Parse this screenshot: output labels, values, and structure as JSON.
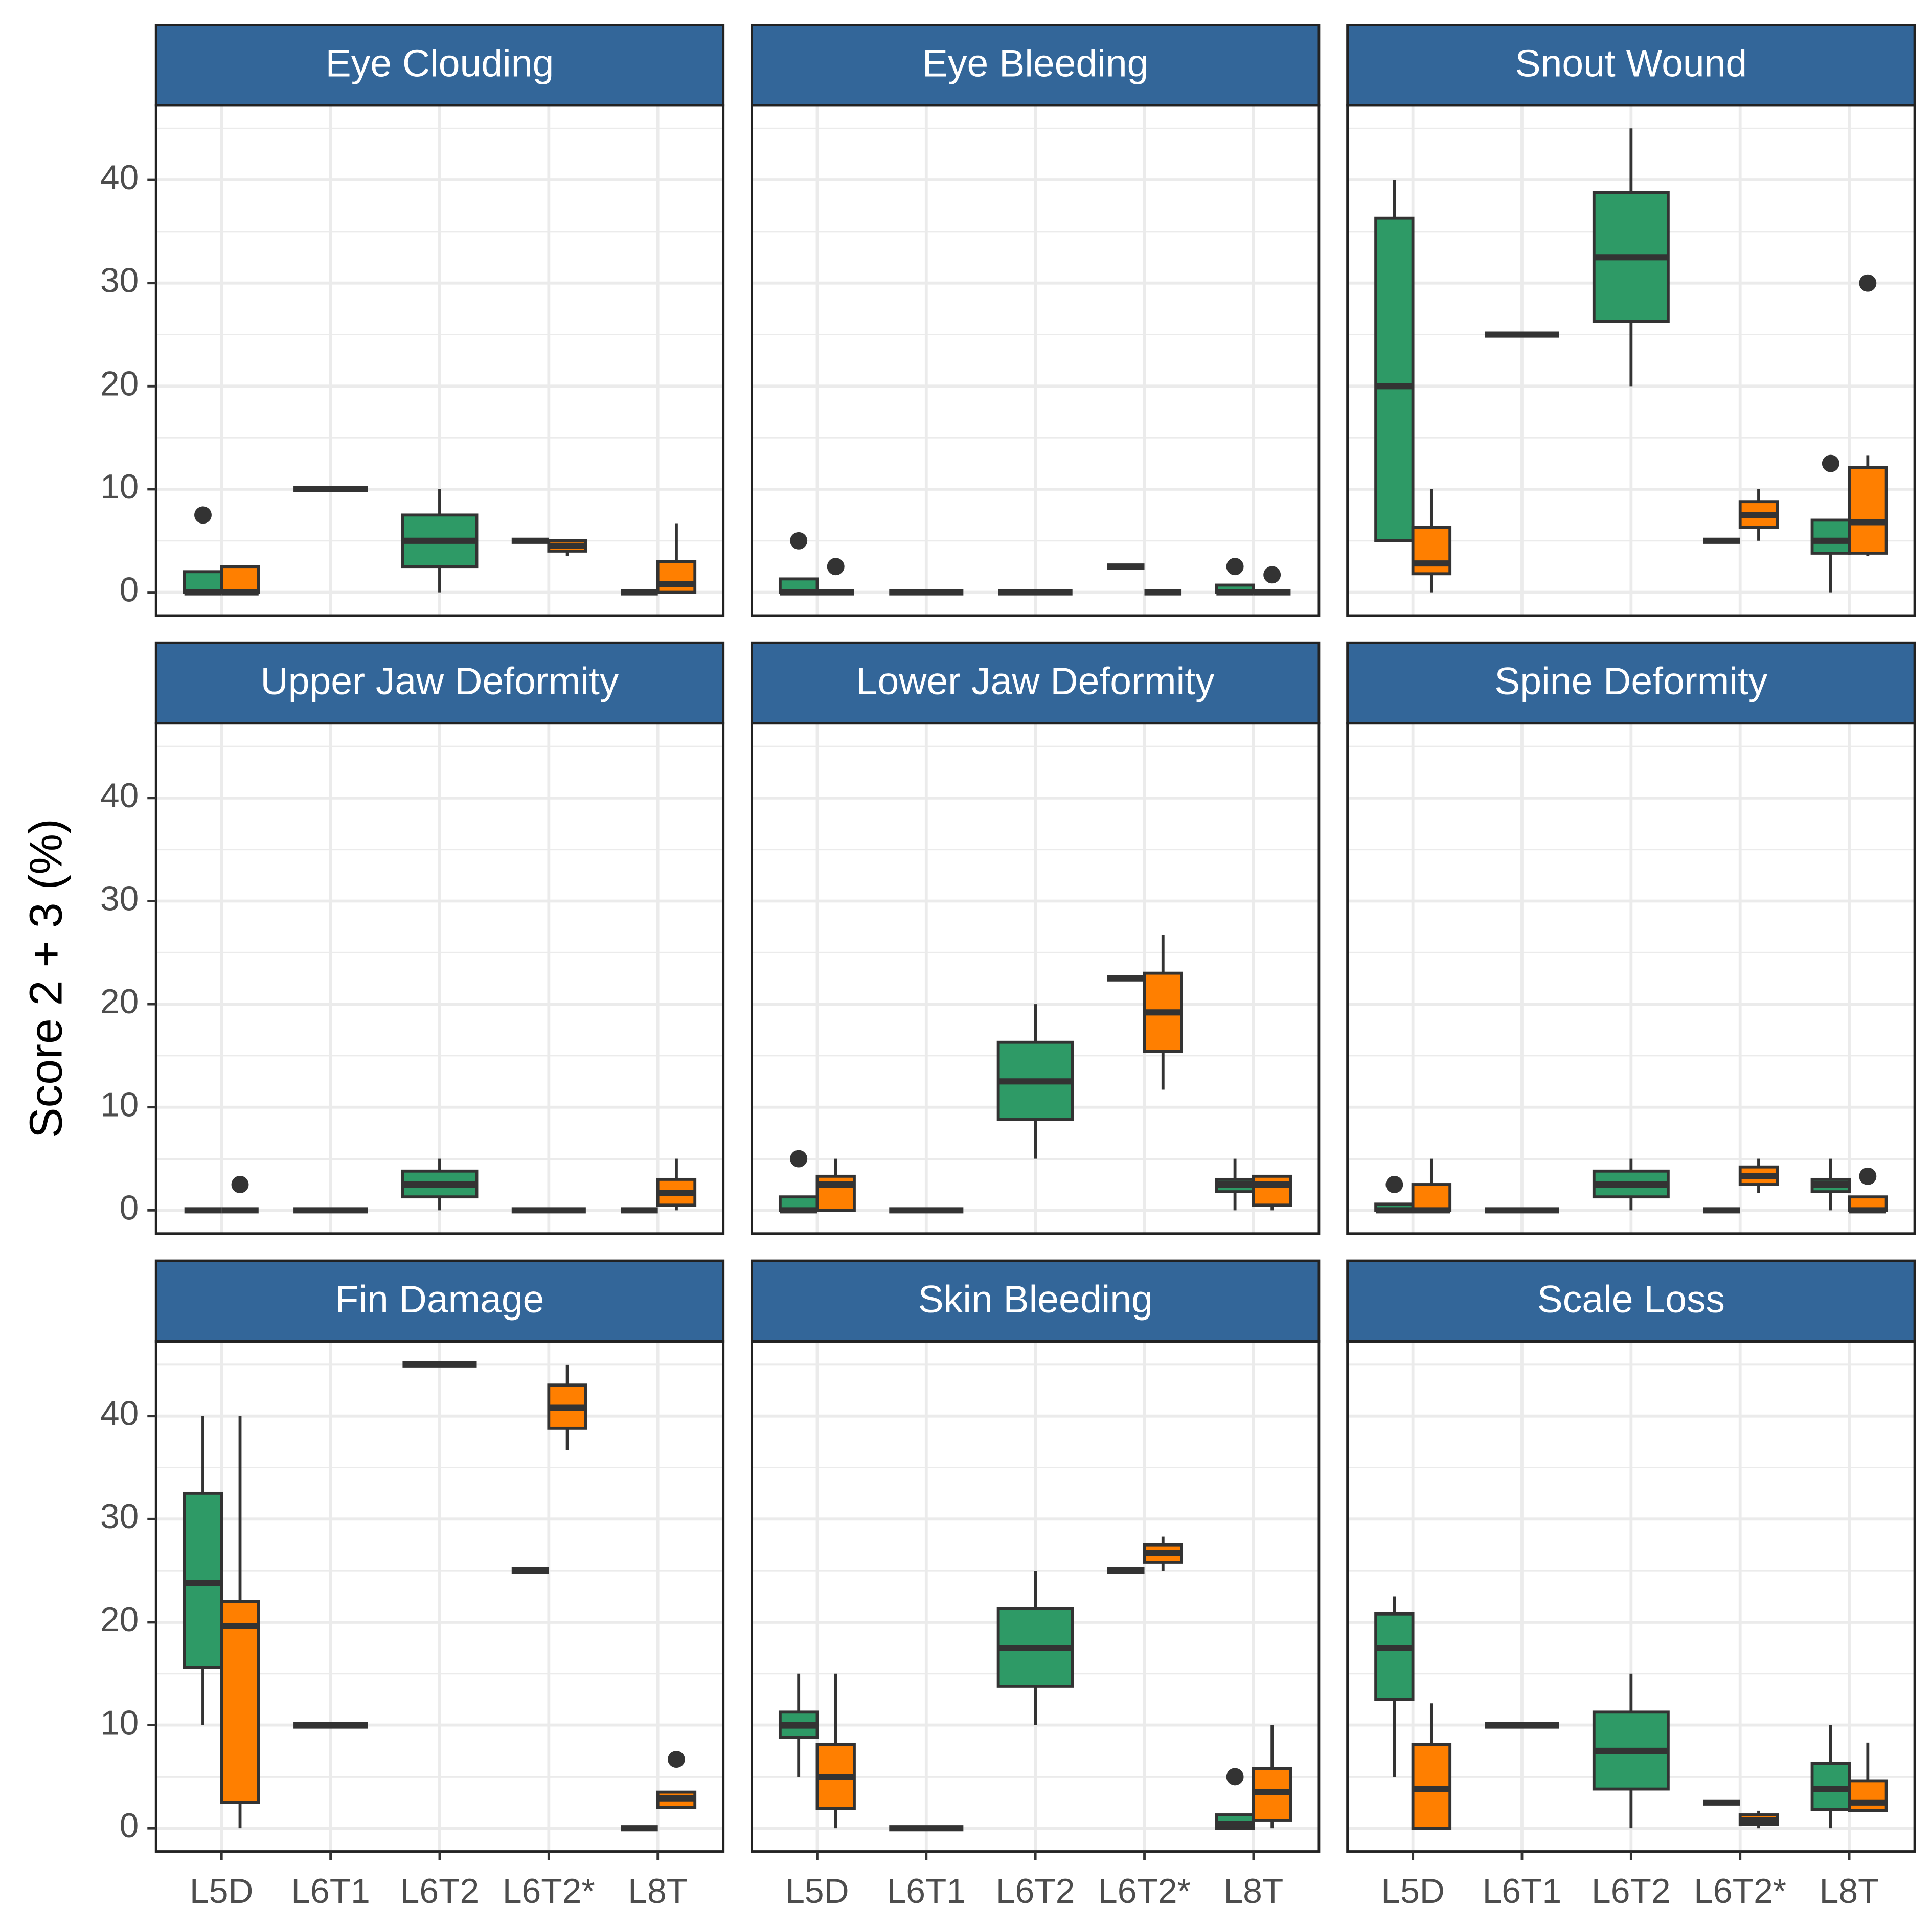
{
  "chart_data": {
    "type": "box",
    "ylabel": "Score 2 + 3 (%)",
    "categories": [
      "L5D",
      "L6T1",
      "L6T2",
      "L6T2*",
      "L8T"
    ],
    "ylim": [
      -2.25,
      47.25
    ],
    "yticks": [
      0,
      10,
      20,
      30,
      40
    ],
    "yminor": [
      5,
      15,
      25,
      35,
      45
    ],
    "grid": true,
    "panels": [
      {
        "title": "Eye Clouding",
        "series": [
          {
            "color": "#2e9a66",
            "boxes": [
              {
                "min": 0,
                "q1": 0,
                "median": 0,
                "q3": 2,
                "max": 2,
                "outliers": [
                  7.5
                ]
              },
              {
                "min": 10,
                "q1": 10,
                "median": 10,
                "q3": 10,
                "max": 10
              },
              {
                "min": 0,
                "q1": 2.5,
                "median": 5,
                "q3": 7.5,
                "max": 10
              },
              {
                "min": 5,
                "q1": 5,
                "median": 5,
                "q3": 5,
                "max": 5
              },
              {
                "min": 0,
                "q1": 0,
                "median": 0,
                "q3": 0,
                "max": 0
              }
            ]
          },
          {
            "color": "#ff7f00",
            "boxes": [
              {
                "min": 0,
                "q1": 0,
                "median": 0,
                "q3": 2.5,
                "max": 2.5
              },
              null,
              null,
              {
                "min": 3.5,
                "q1": 4,
                "median": 4.5,
                "q3": 5,
                "max": 5
              },
              {
                "min": 0,
                "q1": 0,
                "median": 0.8,
                "q3": 3,
                "max": 6.7
              }
            ]
          }
        ]
      },
      {
        "title": "Eye Bleeding",
        "series": [
          {
            "color": "#2e9a66",
            "boxes": [
              {
                "min": 0,
                "q1": 0,
                "median": 0,
                "q3": 1.3,
                "max": 1.3,
                "outliers": [
                  5
                ]
              },
              {
                "min": 0,
                "q1": 0,
                "median": 0,
                "q3": 0,
                "max": 0
              },
              {
                "min": 0,
                "q1": 0,
                "median": 0,
                "q3": 0,
                "max": 0
              },
              {
                "min": 2.5,
                "q1": 2.5,
                "median": 2.5,
                "q3": 2.5,
                "max": 2.5
              },
              {
                "min": 0,
                "q1": 0,
                "median": 0,
                "q3": 0.7,
                "max": 0.7,
                "outliers": [
                  2.5
                ]
              }
            ]
          },
          {
            "color": "#ff7f00",
            "boxes": [
              {
                "min": 0,
                "q1": 0,
                "median": 0,
                "q3": 0,
                "max": 0,
                "outliers": [
                  2.5
                ]
              },
              null,
              null,
              {
                "min": 0,
                "q1": 0,
                "median": 0,
                "q3": 0,
                "max": 0
              },
              {
                "min": 0,
                "q1": 0,
                "median": 0,
                "q3": 0,
                "max": 0,
                "outliers": [
                  1.7
                ]
              }
            ]
          }
        ]
      },
      {
        "title": "Snout Wound",
        "series": [
          {
            "color": "#2e9a66",
            "boxes": [
              {
                "min": 5,
                "q1": 5,
                "median": 20,
                "q3": 36.3,
                "max": 40
              },
              {
                "min": 25,
                "q1": 25,
                "median": 25,
                "q3": 25,
                "max": 25
              },
              {
                "min": 20,
                "q1": 26.3,
                "median": 32.5,
                "q3": 38.8,
                "max": 45
              },
              {
                "min": 5,
                "q1": 5,
                "median": 5,
                "q3": 5,
                "max": 5
              },
              {
                "min": 0,
                "q1": 3.8,
                "median": 5,
                "q3": 7,
                "max": 7,
                "outliers": [
                  12.5
                ]
              }
            ]
          },
          {
            "color": "#ff7f00",
            "boxes": [
              {
                "min": 0,
                "q1": 1.8,
                "median": 2.8,
                "q3": 6.3,
                "max": 10
              },
              null,
              null,
              {
                "min": 5,
                "q1": 6.3,
                "median": 7.5,
                "q3": 8.8,
                "max": 10
              },
              {
                "min": 3.5,
                "q1": 3.8,
                "median": 6.8,
                "q3": 12.1,
                "max": 13.3,
                "outliers": [
                  30
                ]
              }
            ]
          }
        ]
      },
      {
        "title": "Upper Jaw Deformity",
        "series": [
          {
            "color": "#2e9a66",
            "boxes": [
              {
                "min": 0,
                "q1": 0,
                "median": 0,
                "q3": 0,
                "max": 0
              },
              {
                "min": 0,
                "q1": 0,
                "median": 0,
                "q3": 0,
                "max": 0
              },
              {
                "min": 0,
                "q1": 1.3,
                "median": 2.5,
                "q3": 3.8,
                "max": 5
              },
              {
                "min": 0,
                "q1": 0,
                "median": 0,
                "q3": 0,
                "max": 0
              },
              {
                "min": 0,
                "q1": 0,
                "median": 0,
                "q3": 0,
                "max": 0
              }
            ]
          },
          {
            "color": "#ff7f00",
            "boxes": [
              {
                "min": 0,
                "q1": 0,
                "median": 0,
                "q3": 0,
                "max": 0,
                "outliers": [
                  2.5
                ]
              },
              null,
              null,
              {
                "min": 0,
                "q1": 0,
                "median": 0,
                "q3": 0,
                "max": 0
              },
              {
                "min": 0,
                "q1": 0.5,
                "median": 1.7,
                "q3": 3,
                "max": 5
              }
            ]
          }
        ]
      },
      {
        "title": "Lower Jaw Deformity",
        "series": [
          {
            "color": "#2e9a66",
            "boxes": [
              {
                "min": 0,
                "q1": 0,
                "median": 0,
                "q3": 1.3,
                "max": 1.3,
                "outliers": [
                  5
                ]
              },
              {
                "min": 0,
                "q1": 0,
                "median": 0,
                "q3": 0,
                "max": 0
              },
              {
                "min": 5,
                "q1": 8.8,
                "median": 12.5,
                "q3": 16.3,
                "max": 20
              },
              {
                "min": 22.5,
                "q1": 22.5,
                "median": 22.5,
                "q3": 22.5,
                "max": 22.5
              },
              {
                "min": 0,
                "q1": 1.8,
                "median": 2.5,
                "q3": 3,
                "max": 5
              }
            ]
          },
          {
            "color": "#ff7f00",
            "boxes": [
              {
                "min": 0,
                "q1": 0,
                "median": 2.5,
                "q3": 3.3,
                "max": 5
              },
              null,
              null,
              {
                "min": 11.7,
                "q1": 15.4,
                "median": 19.2,
                "q3": 23,
                "max": 26.7
              },
              {
                "min": 0,
                "q1": 0.5,
                "median": 2.5,
                "q3": 3.3,
                "max": 3.3
              }
            ]
          }
        ]
      },
      {
        "title": "Spine Deformity",
        "series": [
          {
            "color": "#2e9a66",
            "boxes": [
              {
                "min": 0,
                "q1": 0,
                "median": 0,
                "q3": 0.6,
                "max": 0.6,
                "outliers": [
                  2.5
                ]
              },
              {
                "min": 0,
                "q1": 0,
                "median": 0,
                "q3": 0,
                "max": 0
              },
              {
                "min": 0,
                "q1": 1.3,
                "median": 2.5,
                "q3": 3.8,
                "max": 5
              },
              {
                "min": 0,
                "q1": 0,
                "median": 0,
                "q3": 0,
                "max": 0
              },
              {
                "min": 0,
                "q1": 1.8,
                "median": 2.5,
                "q3": 3,
                "max": 5
              }
            ]
          },
          {
            "color": "#ff7f00",
            "boxes": [
              {
                "min": 0,
                "q1": 0,
                "median": 0,
                "q3": 2.5,
                "max": 5
              },
              null,
              null,
              {
                "min": 1.7,
                "q1": 2.5,
                "median": 3.3,
                "q3": 4.2,
                "max": 5
              },
              {
                "min": 0,
                "q1": 0,
                "median": 0,
                "q3": 1.3,
                "max": 1.3,
                "outliers": [
                  3.3
                ]
              }
            ]
          }
        ]
      },
      {
        "title": "Fin Damage",
        "series": [
          {
            "color": "#2e9a66",
            "boxes": [
              {
                "min": 10,
                "q1": 15.6,
                "median": 23.8,
                "q3": 32.5,
                "max": 40
              },
              {
                "min": 10,
                "q1": 10,
                "median": 10,
                "q3": 10,
                "max": 10
              },
              {
                "min": 45,
                "q1": 45,
                "median": 45,
                "q3": 45,
                "max": 45
              },
              {
                "min": 25,
                "q1": 25,
                "median": 25,
                "q3": 25,
                "max": 25
              },
              {
                "min": 0,
                "q1": 0,
                "median": 0,
                "q3": 0,
                "max": 0
              }
            ]
          },
          {
            "color": "#ff7f00",
            "boxes": [
              {
                "min": 0,
                "q1": 2.5,
                "median": 19.6,
                "q3": 22,
                "max": 40
              },
              null,
              null,
              {
                "min": 36.7,
                "q1": 38.8,
                "median": 40.8,
                "q3": 43,
                "max": 45
              },
              {
                "min": 1.9,
                "q1": 2,
                "median": 2.9,
                "q3": 3.5,
                "max": 3.5,
                "outliers": [
                  6.7
                ]
              }
            ]
          }
        ]
      },
      {
        "title": "Skin Bleeding",
        "series": [
          {
            "color": "#2e9a66",
            "boxes": [
              {
                "min": 5,
                "q1": 8.8,
                "median": 10,
                "q3": 11.3,
                "max": 15
              },
              {
                "min": 0,
                "q1": 0,
                "median": 0,
                "q3": 0,
                "max": 0
              },
              {
                "min": 10,
                "q1": 13.8,
                "median": 17.5,
                "q3": 21.3,
                "max": 25
              },
              {
                "min": 25,
                "q1": 25,
                "median": 25,
                "q3": 25,
                "max": 25
              },
              {
                "min": 0,
                "q1": 0,
                "median": 0.4,
                "q3": 1.3,
                "max": 1.3,
                "outliers": [
                  5
                ]
              }
            ]
          },
          {
            "color": "#ff7f00",
            "boxes": [
              {
                "min": 0,
                "q1": 1.9,
                "median": 5,
                "q3": 8.1,
                "max": 15
              },
              null,
              null,
              {
                "min": 25,
                "q1": 25.8,
                "median": 26.7,
                "q3": 27.5,
                "max": 28.3
              },
              {
                "min": 0,
                "q1": 0.8,
                "median": 3.5,
                "q3": 5.8,
                "max": 10
              }
            ]
          }
        ]
      },
      {
        "title": "Scale Loss",
        "series": [
          {
            "color": "#2e9a66",
            "boxes": [
              {
                "min": 5,
                "q1": 12.5,
                "median": 17.5,
                "q3": 20.8,
                "max": 22.5
              },
              {
                "min": 10,
                "q1": 10,
                "median": 10,
                "q3": 10,
                "max": 10
              },
              {
                "min": 0,
                "q1": 3.8,
                "median": 7.5,
                "q3": 11.3,
                "max": 15
              },
              {
                "min": 2.5,
                "q1": 2.5,
                "median": 2.5,
                "q3": 2.5,
                "max": 2.5
              },
              {
                "min": 0,
                "q1": 1.8,
                "median": 3.8,
                "q3": 6.3,
                "max": 10
              }
            ]
          },
          {
            "color": "#ff7f00",
            "boxes": [
              {
                "min": 0,
                "q1": 0,
                "median": 3.8,
                "q3": 8.1,
                "max": 12.1
              },
              null,
              null,
              {
                "min": 0,
                "q1": 0.4,
                "median": 0.8,
                "q3": 1.3,
                "max": 1.7
              },
              {
                "min": 1.7,
                "q1": 1.7,
                "median": 2.5,
                "q3": 4.6,
                "max": 8.3
              }
            ]
          }
        ]
      }
    ]
  }
}
